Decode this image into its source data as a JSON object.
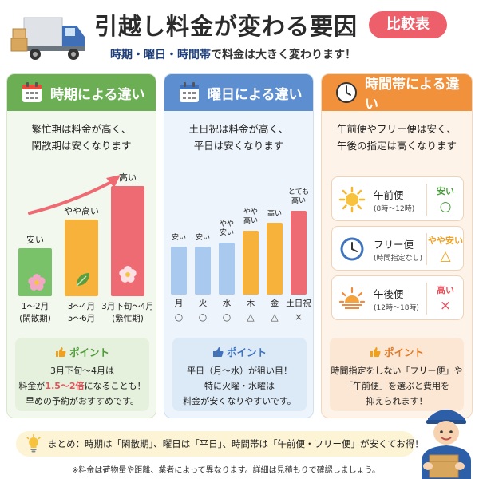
{
  "header": {
    "title": "引越し料金が変わる要因",
    "badge": "比較表",
    "subtitle_parts": [
      "時期・曜日・時間帯",
      "で料金は大きく変わります！"
    ]
  },
  "season": {
    "title": "時期による違い",
    "lead": [
      "繁忙期は料金が高く、",
      "閑散期は安くなります"
    ],
    "chart_data": {
      "type": "bar",
      "categories": [
        "1〜2月 (閑散期)",
        "3〜4月 5〜6月",
        "3月下旬〜4月 (繁忙期)"
      ],
      "levels": [
        "安い",
        "やや高い",
        "高い"
      ],
      "x_lines": [
        [
          "1〜2月",
          "(閑散期)"
        ],
        [
          "3〜4月",
          "5〜6月"
        ],
        [
          "3月下旬〜4月",
          "(繁忙期)"
        ]
      ],
      "relative_values": [
        1,
        1.6,
        2.3
      ],
      "colors": [
        "#79c26a",
        "#f7b23b",
        "#ef6b73"
      ]
    },
    "point": {
      "title": "ポイント",
      "line1": "3月下旬〜4月は",
      "line2_pre": "料金が",
      "line2_hl": "1.5〜2倍",
      "line2_post": "になることも！",
      "line3": "早めの予約がおすすめです。"
    }
  },
  "weekday": {
    "title": "曜日による違い",
    "lead": [
      "土日祝は料金が高く、",
      "平日は安くなります"
    ],
    "chart_data": {
      "type": "bar",
      "categories": [
        "月",
        "火",
        "水",
        "木",
        "金",
        "土日祝"
      ],
      "levels": [
        [
          "安い"
        ],
        [
          "安い"
        ],
        [
          "やや",
          "安い"
        ],
        [
          "やや",
          "高い"
        ],
        [
          "高い"
        ],
        [
          "とても",
          "高い"
        ]
      ],
      "relative_values": [
        1,
        1,
        1.1,
        1.4,
        1.6,
        1.9
      ],
      "marks": [
        "○",
        "○",
        "○",
        "△",
        "△",
        "×"
      ],
      "colors": [
        "#a9c9ee",
        "#a9c9ee",
        "#a9c9ee",
        "#f7b23b",
        "#f7b23b",
        "#ef6b73"
      ]
    },
    "point": {
      "title": "ポイント",
      "line1": "平日（月〜水）が狙い目！",
      "line2": "特に火曜・水曜は",
      "line3": "料金が安くなりやすいです。"
    }
  },
  "timeslot": {
    "title": "時間帯による違い",
    "lead": [
      "午前便やフリー便は安く、",
      "午後の指定は高くなります"
    ],
    "items": [
      {
        "name": "午前便",
        "sub": "(8時〜12時)",
        "level": "安い",
        "mark": "○",
        "color": "#4a9d3c",
        "icon": "sun-icon"
      },
      {
        "name": "フリー便",
        "sub": "(時間指定なし)",
        "level": "やや安い",
        "mark": "△",
        "color": "#f0a020",
        "icon": "clock-icon"
      },
      {
        "name": "午後便",
        "sub": "(12時〜18時)",
        "level": "高い",
        "mark": "×",
        "color": "#e8505b",
        "icon": "sunset-icon"
      }
    ],
    "point": {
      "title": "ポイント",
      "line1": "時間指定をしない「フリー便」や",
      "line2": "「午前便」を選ぶと費用を",
      "line3": "抑えられます！"
    }
  },
  "summary": "まとめ：時期は「閑散期」、曜日は「平日」、時間帯は「午前便・フリー便」が安くてお得！",
  "note": "※料金は荷物量や距離、業者によって異なります。詳細は見積もりで確認しましょう。"
}
